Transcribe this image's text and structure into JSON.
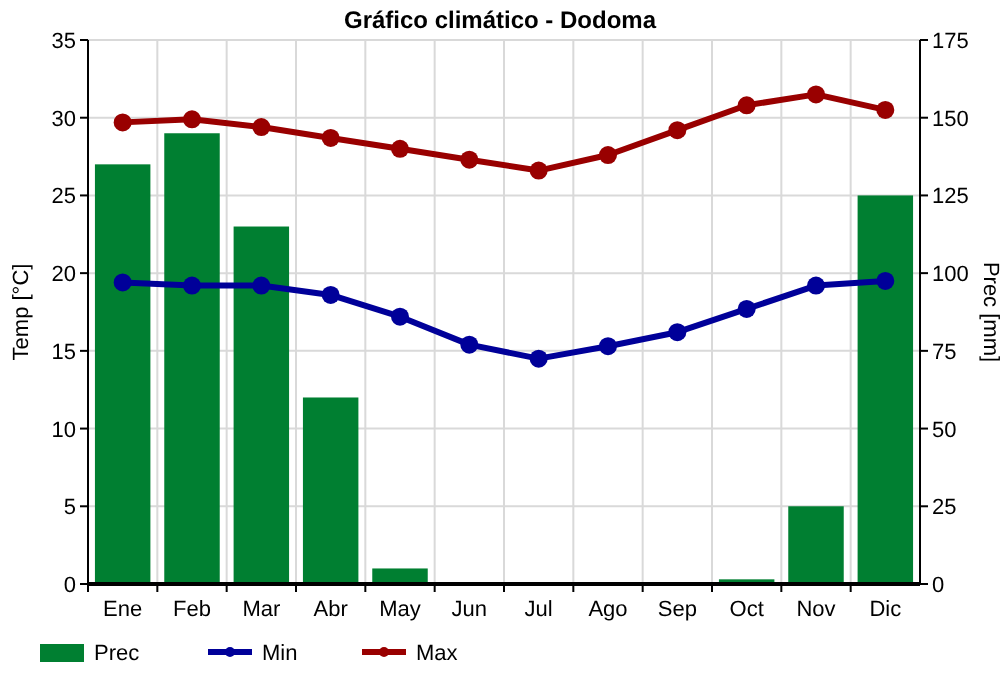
{
  "chart_data": {
    "type": "line",
    "title": "Gráfico climático - Dodoma",
    "ylabel": "Temp [°C]",
    "y2label": "Prec [mm]",
    "categories": [
      "Ene",
      "Feb",
      "Mar",
      "Abr",
      "May",
      "Jun",
      "Jul",
      "Ago",
      "Sep",
      "Oct",
      "Nov",
      "Dic"
    ],
    "series": [
      {
        "name": "Prec",
        "type": "bar",
        "axis": "y2",
        "color": "#007f31",
        "values": [
          135,
          145,
          115,
          60,
          5,
          0,
          0,
          0,
          0,
          1.5,
          25,
          125
        ]
      },
      {
        "name": "Min",
        "color": "#000099",
        "values": [
          19.4,
          19.2,
          19.2,
          18.6,
          17.2,
          15.4,
          14.5,
          15.3,
          16.2,
          17.7,
          19.2,
          19.5
        ]
      },
      {
        "name": "Max",
        "color": "#990000",
        "values": [
          29.7,
          29.9,
          29.4,
          28.7,
          28.0,
          27.3,
          26.6,
          27.6,
          29.2,
          30.8,
          31.5,
          30.5
        ]
      }
    ],
    "ylim": [
      0,
      35
    ],
    "yticks": [
      0,
      5,
      10,
      15,
      20,
      25,
      30,
      35
    ],
    "y2lim": [
      0,
      175
    ],
    "y2ticks": [
      0,
      25,
      50,
      75,
      100,
      125,
      150,
      175
    ],
    "grid": true,
    "legend": "bottom",
    "marker": "circle",
    "line_style": "solid"
  }
}
